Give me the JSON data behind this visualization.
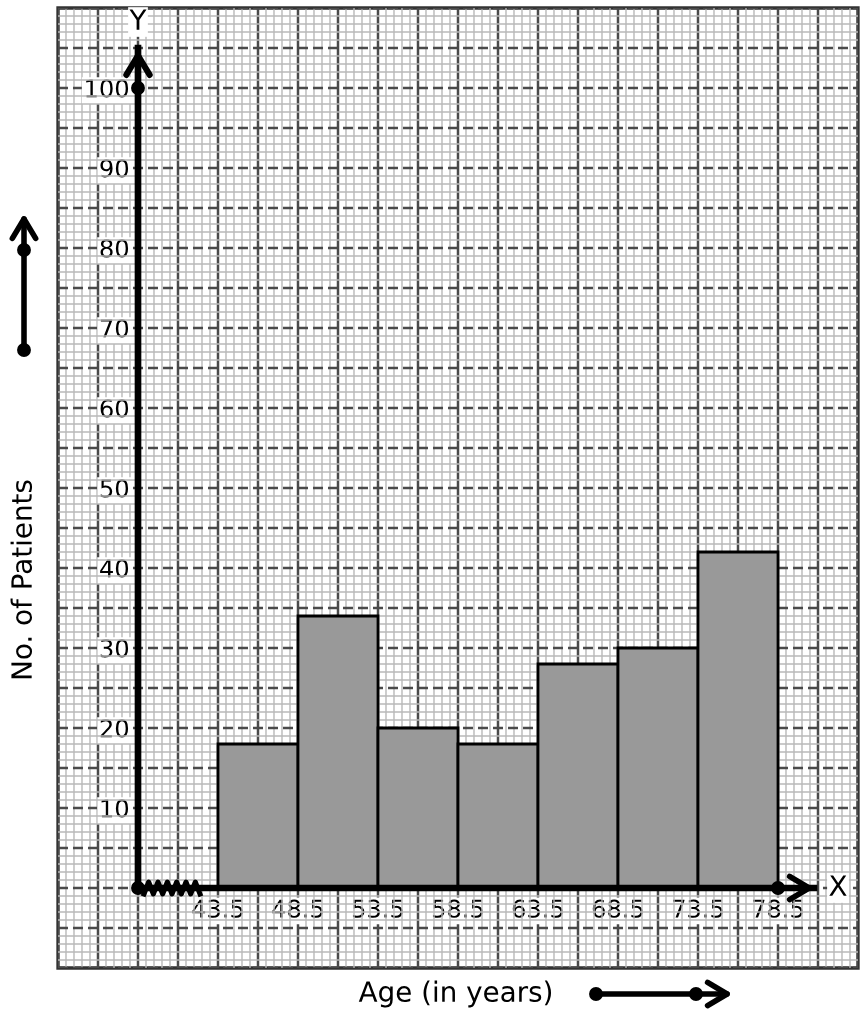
{
  "chart_data": {
    "type": "histogram",
    "bins": [
      43.5,
      48.5,
      53.5,
      58.5,
      63.5,
      68.5,
      73.5,
      78.5
    ],
    "values": [
      18,
      34,
      20,
      18,
      28,
      30,
      42
    ],
    "color": "#999999",
    "xlabel": "Age (in years)",
    "ylabel": "No. of Patients",
    "annotations": [
      "Y",
      "X"
    ],
    "xlim": [
      33.5,
      83.5
    ],
    "ylim": [
      -10,
      110
    ],
    "xticks": [
      43.5,
      48.5,
      53.5,
      58.5,
      63.5,
      68.5,
      73.5,
      78.5
    ],
    "yticks": [
      10,
      20,
      30,
      40,
      50,
      60,
      70,
      80,
      90,
      100
    ],
    "grid": true
  }
}
